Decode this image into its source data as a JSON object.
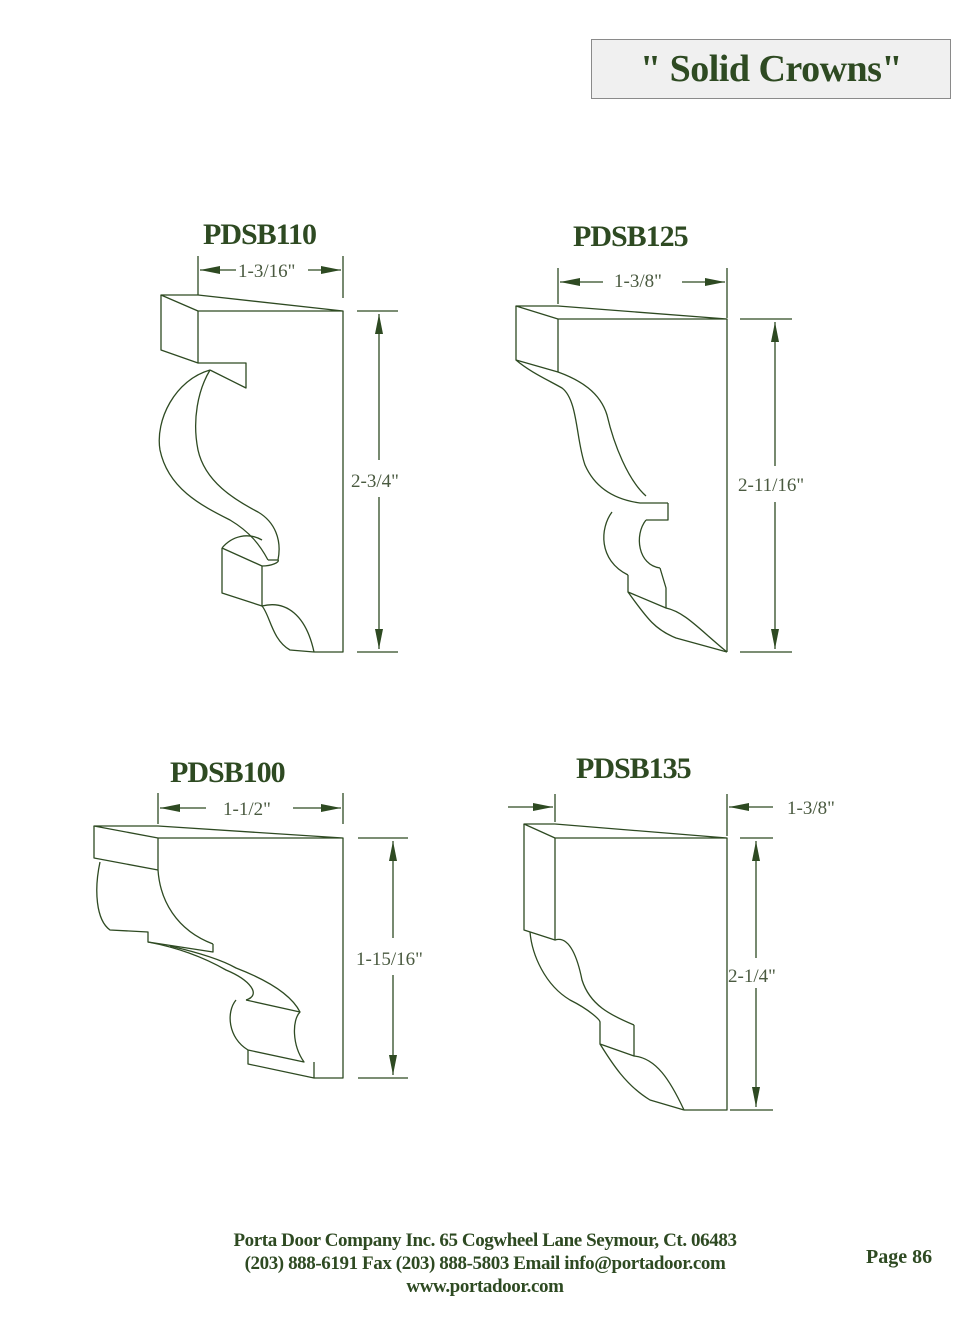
{
  "header": {
    "title": "\" Solid Crowns\""
  },
  "colors": {
    "ink": "#2e4a22",
    "line": "#2e4a22",
    "title_box_bg": "#f0f0f0",
    "title_box_border": "#8a8a8a"
  },
  "profiles": [
    {
      "model": "PDSB110",
      "width": "1-3/16\"",
      "height": "2-3/4\""
    },
    {
      "model": "PDSB125",
      "width": "1-3/8\"",
      "height": "2-11/16\""
    },
    {
      "model": "PDSB100",
      "width": "1-1/2\"",
      "height": "1-15/16\""
    },
    {
      "model": "PDSB135",
      "width": "1-3/8\"",
      "height": "2-1/4\""
    }
  ],
  "footer": {
    "line1": "Porta Door Company Inc. 65 Cogwheel Lane Seymour, Ct. 06483",
    "line2": "(203) 888-6191 Fax (203) 888-5803 Email info@portadoor.com",
    "line3": "www.portadoor.com",
    "page": "Page 86"
  }
}
